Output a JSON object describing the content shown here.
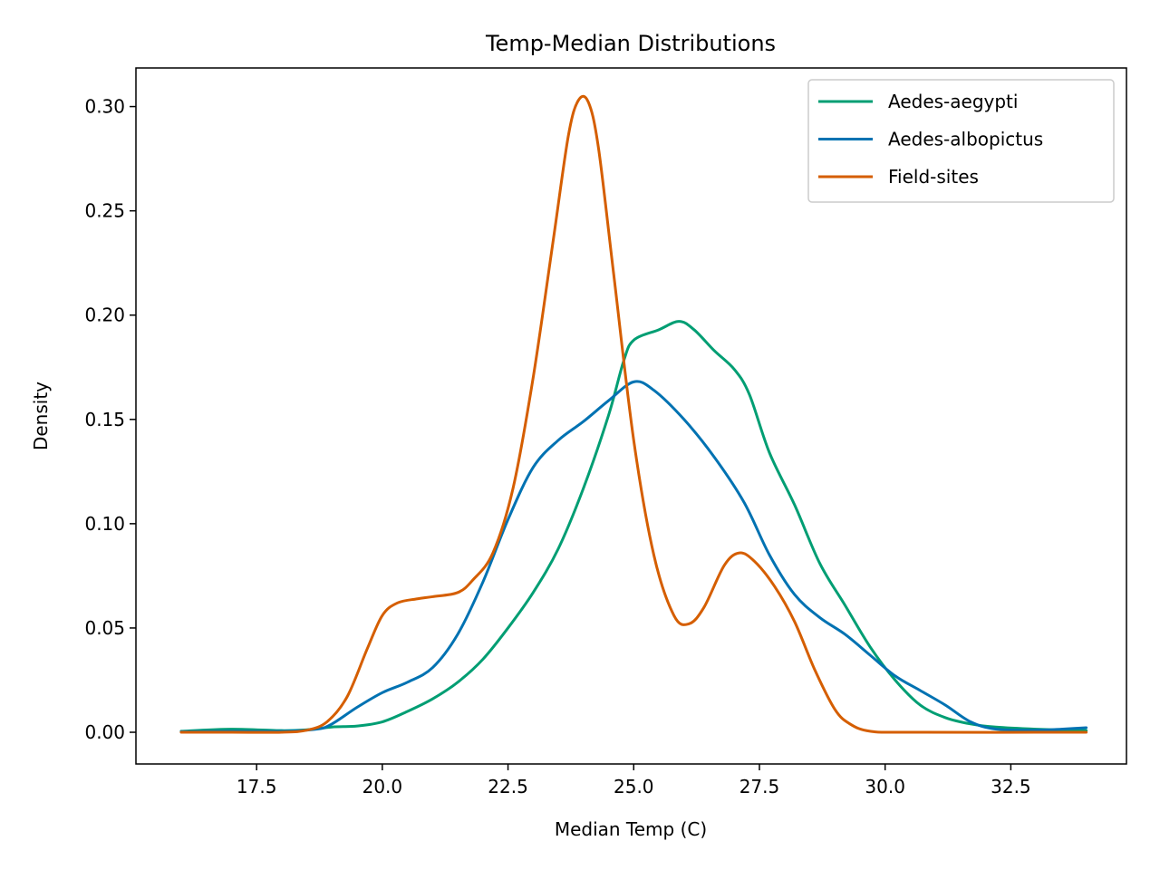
{
  "chart_data": {
    "type": "line",
    "title": "Temp-Median Distributions",
    "xlabel": "Median Temp (C)",
    "ylabel": "Density",
    "xlim": [
      15.1,
      34.8
    ],
    "ylim": [
      -0.0152,
      0.3185
    ],
    "xticks": [
      17.5,
      20.0,
      22.5,
      25.0,
      27.5,
      30.0,
      32.5
    ],
    "xtick_labels": [
      "17.5",
      "20.0",
      "22.5",
      "25.0",
      "27.5",
      "30.0",
      "32.5"
    ],
    "yticks": [
      0.0,
      0.05,
      0.1,
      0.15,
      0.2,
      0.25,
      0.3
    ],
    "ytick_labels": [
      "0.00",
      "0.05",
      "0.10",
      "0.15",
      "0.20",
      "0.25",
      "0.30"
    ],
    "grid": false,
    "legend_position": "top-right",
    "series": [
      {
        "name": "Aedes-aegypti",
        "color": "#009e73",
        "points": [
          [
            16.0,
            0.0005
          ],
          [
            17.0,
            0.0015
          ],
          [
            18.0,
            0.0008
          ],
          [
            18.5,
            0.0012
          ],
          [
            19.0,
            0.0025
          ],
          [
            19.5,
            0.003
          ],
          [
            20.0,
            0.005
          ],
          [
            20.5,
            0.01
          ],
          [
            21.0,
            0.016
          ],
          [
            21.5,
            0.024
          ],
          [
            22.0,
            0.035
          ],
          [
            22.5,
            0.05
          ],
          [
            23.0,
            0.067
          ],
          [
            23.5,
            0.088
          ],
          [
            24.0,
            0.117
          ],
          [
            24.5,
            0.152
          ],
          [
            24.8,
            0.178
          ],
          [
            25.0,
            0.188
          ],
          [
            25.5,
            0.193
          ],
          [
            25.9,
            0.197
          ],
          [
            26.2,
            0.193
          ],
          [
            26.6,
            0.183
          ],
          [
            27.0,
            0.174
          ],
          [
            27.3,
            0.162
          ],
          [
            27.7,
            0.134
          ],
          [
            28.2,
            0.109
          ],
          [
            28.7,
            0.081
          ],
          [
            29.2,
            0.061
          ],
          [
            29.7,
            0.041
          ],
          [
            30.2,
            0.025
          ],
          [
            30.7,
            0.013
          ],
          [
            31.2,
            0.007
          ],
          [
            31.7,
            0.004
          ],
          [
            32.2,
            0.0025
          ],
          [
            33.0,
            0.0015
          ],
          [
            34.0,
            0.0008
          ]
        ]
      },
      {
        "name": "Aedes-albopictus",
        "color": "#0072b2",
        "points": [
          [
            16.0,
            0.0003
          ],
          [
            17.0,
            0.0005
          ],
          [
            18.0,
            0.0005
          ],
          [
            18.7,
            0.0015
          ],
          [
            19.0,
            0.004
          ],
          [
            19.5,
            0.012
          ],
          [
            20.0,
            0.019
          ],
          [
            20.5,
            0.024
          ],
          [
            21.0,
            0.031
          ],
          [
            21.5,
            0.047
          ],
          [
            22.0,
            0.072
          ],
          [
            22.5,
            0.102
          ],
          [
            23.0,
            0.127
          ],
          [
            23.5,
            0.14
          ],
          [
            24.0,
            0.149
          ],
          [
            24.5,
            0.159
          ],
          [
            25.0,
            0.168
          ],
          [
            25.4,
            0.164
          ],
          [
            26.0,
            0.15
          ],
          [
            26.6,
            0.132
          ],
          [
            27.2,
            0.11
          ],
          [
            27.7,
            0.085
          ],
          [
            28.2,
            0.066
          ],
          [
            28.7,
            0.055
          ],
          [
            29.2,
            0.047
          ],
          [
            29.7,
            0.037
          ],
          [
            30.2,
            0.027
          ],
          [
            30.7,
            0.02
          ],
          [
            31.2,
            0.013
          ],
          [
            31.7,
            0.005
          ],
          [
            32.2,
            0.0015
          ],
          [
            33.0,
            0.001
          ],
          [
            33.5,
            0.0015
          ],
          [
            34.0,
            0.0022
          ]
        ]
      },
      {
        "name": "Field-sites",
        "color": "#d55e00",
        "points": [
          [
            16.0,
            0.0
          ],
          [
            17.0,
            0.0
          ],
          [
            18.0,
            0.0
          ],
          [
            18.5,
            0.001
          ],
          [
            18.9,
            0.005
          ],
          [
            19.3,
            0.017
          ],
          [
            19.7,
            0.04
          ],
          [
            20.0,
            0.056
          ],
          [
            20.3,
            0.062
          ],
          [
            20.7,
            0.064
          ],
          [
            21.0,
            0.065
          ],
          [
            21.5,
            0.067
          ],
          [
            21.8,
            0.073
          ],
          [
            22.2,
            0.086
          ],
          [
            22.6,
            0.117
          ],
          [
            23.0,
            0.17
          ],
          [
            23.4,
            0.236
          ],
          [
            23.7,
            0.286
          ],
          [
            23.9,
            0.303
          ],
          [
            24.1,
            0.302
          ],
          [
            24.3,
            0.28
          ],
          [
            24.6,
            0.22
          ],
          [
            25.0,
            0.14
          ],
          [
            25.4,
            0.085
          ],
          [
            25.8,
            0.056
          ],
          [
            26.1,
            0.052
          ],
          [
            26.4,
            0.06
          ],
          [
            26.8,
            0.08
          ],
          [
            27.1,
            0.086
          ],
          [
            27.4,
            0.082
          ],
          [
            27.8,
            0.07
          ],
          [
            28.2,
            0.053
          ],
          [
            28.6,
            0.03
          ],
          [
            29.0,
            0.011
          ],
          [
            29.3,
            0.004
          ],
          [
            29.7,
            0.0005
          ],
          [
            30.5,
            0.0
          ],
          [
            34.0,
            0.0
          ]
        ]
      }
    ]
  }
}
